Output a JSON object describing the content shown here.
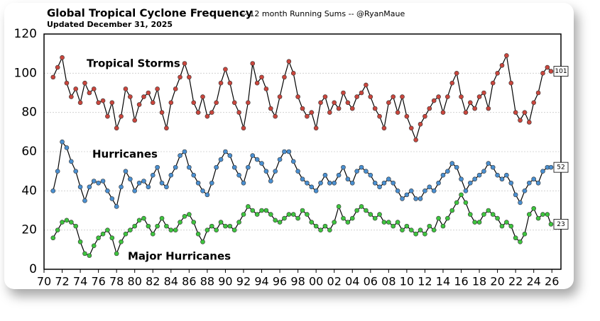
{
  "chart_data": {
    "type": "line",
    "title": "Global Tropical Cyclone Frequency",
    "subtitle": "-- 12 month Running Sums -- @RyanMaue",
    "updated": "Updated December 31, 2025",
    "xlim": [
      1970,
      2027
    ],
    "ylim": [
      0,
      120
    ],
    "yticks": [
      0,
      20,
      40,
      60,
      80,
      100,
      120
    ],
    "xticks": [
      {
        "value": 1970,
        "label": "70"
      },
      {
        "value": 1972,
        "label": "72"
      },
      {
        "value": 1974,
        "label": "74"
      },
      {
        "value": 1976,
        "label": "76"
      },
      {
        "value": 1978,
        "label": "78"
      },
      {
        "value": 1980,
        "label": "80"
      },
      {
        "value": 1982,
        "label": "82"
      },
      {
        "value": 1984,
        "label": "84"
      },
      {
        "value": 1986,
        "label": "86"
      },
      {
        "value": 1988,
        "label": "88"
      },
      {
        "value": 1990,
        "label": "90"
      },
      {
        "value": 1992,
        "label": "92"
      },
      {
        "value": 1994,
        "label": "94"
      },
      {
        "value": 1996,
        "label": "96"
      },
      {
        "value": 1998,
        "label": "98"
      },
      {
        "value": 2000,
        "label": "00"
      },
      {
        "value": 2002,
        "label": "02"
      },
      {
        "value": 2004,
        "label": "04"
      },
      {
        "value": 2006,
        "label": "06"
      },
      {
        "value": 2008,
        "label": "08"
      },
      {
        "value": 2010,
        "label": "10"
      },
      {
        "value": 2012,
        "label": "12"
      },
      {
        "value": 2014,
        "label": "14"
      },
      {
        "value": 2016,
        "label": "16"
      },
      {
        "value": 2018,
        "label": "18"
      },
      {
        "value": 2020,
        "label": "20"
      },
      {
        "value": 2022,
        "label": "22"
      },
      {
        "value": 2024,
        "label": "24"
      },
      {
        "value": 2026,
        "label": "26"
      }
    ],
    "grid": true,
    "x": [
      1971,
      1971.5,
      1972,
      1972.5,
      1973,
      1973.5,
      1974,
      1974.5,
      1975,
      1975.5,
      1976,
      1976.5,
      1977,
      1977.5,
      1978,
      1978.5,
      1979,
      1979.5,
      1980,
      1980.5,
      1981,
      1981.5,
      1982,
      1982.5,
      1983,
      1983.5,
      1984,
      1984.5,
      1985,
      1985.5,
      1986,
      1986.5,
      1987,
      1987.5,
      1988,
      1988.5,
      1989,
      1989.5,
      1990,
      1990.5,
      1991,
      1991.5,
      1992,
      1992.5,
      1993,
      1993.5,
      1994,
      1994.5,
      1995,
      1995.5,
      1996,
      1996.5,
      1997,
      1997.5,
      1998,
      1998.5,
      1999,
      1999.5,
      2000,
      2000.5,
      2001,
      2001.5,
      2002,
      2002.5,
      2003,
      2003.5,
      2004,
      2004.5,
      2005,
      2005.5,
      2006,
      2006.5,
      2007,
      2007.5,
      2008,
      2008.5,
      2009,
      2009.5,
      2010,
      2010.5,
      2011,
      2011.5,
      2012,
      2012.5,
      2013,
      2013.5,
      2014,
      2014.5,
      2015,
      2015.5,
      2016,
      2016.5,
      2017,
      2017.5,
      2018,
      2018.5,
      2019,
      2019.5,
      2020,
      2020.5,
      2021,
      2021.5,
      2022,
      2022.5,
      2023,
      2023.5,
      2024,
      2024.5,
      2025,
      2025.5,
      2025.9
    ],
    "series": [
      {
        "name": "Tropical Storms",
        "color": "#c9463d",
        "values": [
          98,
          103,
          108,
          95,
          88,
          92,
          85,
          95,
          90,
          92,
          85,
          86,
          78,
          85,
          72,
          78,
          92,
          88,
          76,
          84,
          88,
          90,
          85,
          92,
          80,
          72,
          85,
          92,
          98,
          105,
          98,
          85,
          80,
          88,
          78,
          80,
          85,
          95,
          102,
          95,
          85,
          80,
          72,
          85,
          105,
          95,
          98,
          92,
          82,
          78,
          88,
          98,
          106,
          100,
          88,
          82,
          78,
          80,
          72,
          85,
          88,
          80,
          85,
          82,
          90,
          85,
          82,
          88,
          90,
          94,
          88,
          82,
          78,
          72,
          85,
          88,
          80,
          88,
          78,
          72,
          66,
          74,
          78,
          82,
          86,
          88,
          80,
          88,
          95,
          100,
          88,
          80,
          85,
          82,
          88,
          90,
          82,
          95,
          100,
          104,
          109,
          95,
          80,
          76,
          80,
          75,
          85,
          90,
          100,
          103,
          101
        ]
      },
      {
        "name": "Hurricanes",
        "color": "#4a8fd0",
        "values": [
          40,
          50,
          65,
          62,
          55,
          50,
          42,
          35,
          42,
          45,
          44,
          45,
          40,
          36,
          32,
          42,
          50,
          46,
          40,
          44,
          45,
          42,
          48,
          52,
          44,
          42,
          48,
          52,
          58,
          60,
          52,
          48,
          44,
          40,
          38,
          44,
          52,
          56,
          60,
          58,
          52,
          48,
          44,
          52,
          58,
          56,
          54,
          50,
          45,
          50,
          56,
          60,
          60,
          55,
          50,
          46,
          44,
          42,
          40,
          44,
          48,
          44,
          44,
          48,
          52,
          46,
          44,
          50,
          52,
          50,
          48,
          44,
          42,
          44,
          46,
          44,
          40,
          36,
          38,
          40,
          36,
          36,
          40,
          42,
          40,
          44,
          48,
          50,
          54,
          52,
          46,
          40,
          44,
          46,
          48,
          50,
          54,
          52,
          48,
          46,
          48,
          44,
          38,
          34,
          40,
          44,
          46,
          44,
          50,
          52,
          52
        ]
      },
      {
        "name": "Major Hurricanes",
        "color": "#3ec43e",
        "values": [
          16,
          20,
          24,
          25,
          24,
          22,
          14,
          8,
          7,
          12,
          16,
          18,
          20,
          16,
          8,
          14,
          18,
          20,
          22,
          25,
          26,
          22,
          18,
          22,
          26,
          22,
          20,
          20,
          24,
          27,
          28,
          24,
          18,
          14,
          20,
          22,
          20,
          24,
          22,
          22,
          20,
          24,
          28,
          32,
          30,
          28,
          30,
          30,
          28,
          25,
          24,
          26,
          28,
          28,
          26,
          30,
          28,
          24,
          22,
          20,
          22,
          20,
          24,
          32,
          26,
          24,
          26,
          30,
          32,
          30,
          28,
          26,
          28,
          24,
          24,
          22,
          24,
          20,
          22,
          20,
          18,
          20,
          18,
          22,
          20,
          26,
          22,
          26,
          30,
          34,
          38,
          34,
          28,
          24,
          24,
          28,
          30,
          28,
          26,
          22,
          24,
          22,
          16,
          14,
          18,
          28,
          31,
          26,
          28,
          28,
          23
        ]
      }
    ]
  }
}
